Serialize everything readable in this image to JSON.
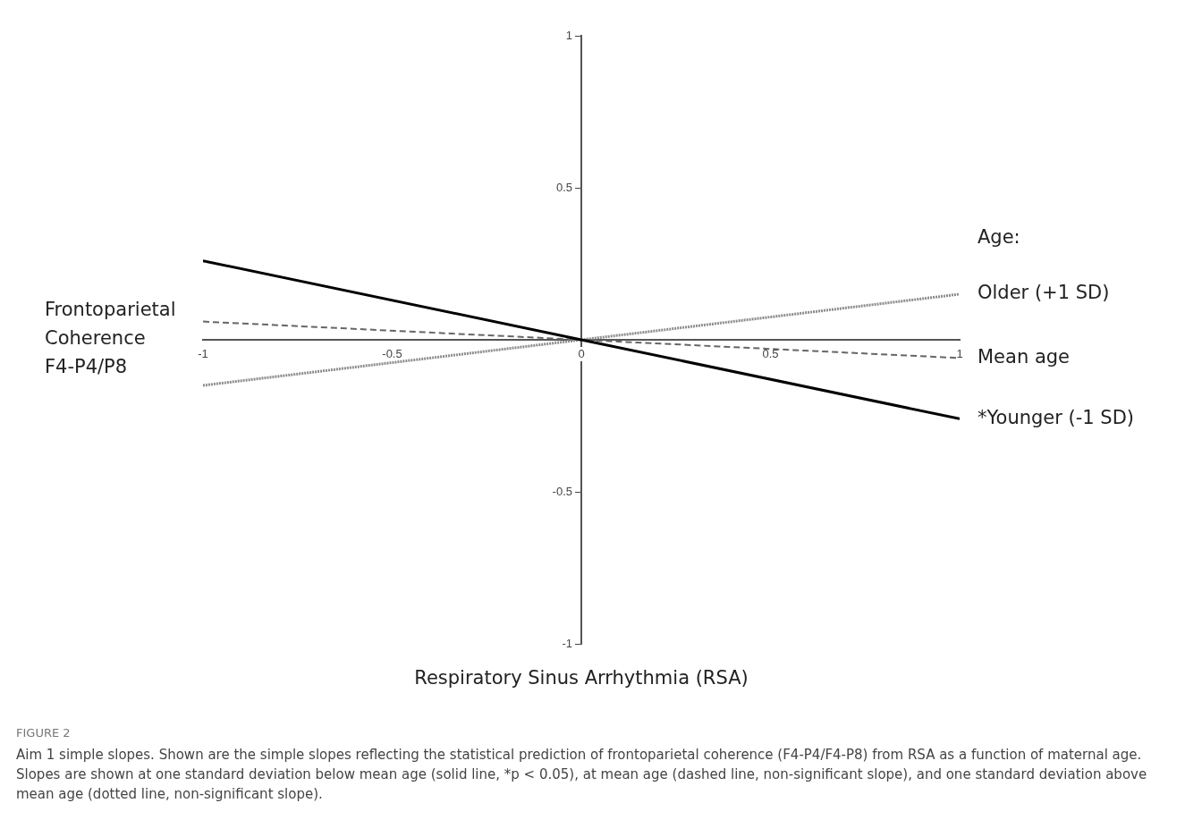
{
  "chart_data": {
    "type": "line",
    "xlabel": "Respiratory Sinus Arrhythmia (RSA)",
    "ylabel": "Frontoparietal Coherence F4-P4/P8",
    "legend_title": "Age:",
    "x": [
      -1,
      0,
      1
    ],
    "series": [
      {
        "name": "*Younger (-1 SD)",
        "color": "#000000",
        "line_style": "solid",
        "values": [
          0.26,
          0,
          -0.26
        ]
      },
      {
        "name": "Mean age",
        "color": "#666666",
        "line_style": "dashed",
        "values": [
          0.06,
          0,
          -0.06
        ]
      },
      {
        "name": "Older (+1 SD)",
        "color": "#8c8c8c",
        "line_style": "dotted",
        "values": [
          -0.15,
          0,
          0.15
        ]
      }
    ],
    "xlim": [
      -1,
      1
    ],
    "xticks": [
      -1,
      -0.5,
      0,
      0.5,
      1
    ],
    "ylim": [
      -1,
      1
    ],
    "yticks": [
      -1,
      -0.5,
      0.5,
      1
    ],
    "grid": false,
    "marker": "none",
    "annotations": [
      "FIGURE 2",
      "Aim 1 simple slopes. Shown are the simple slopes reflecting the statistical prediction of frontoparietal coherence (F4-P4/F4-P8) from RSA as a function of maternal age. Slopes are shown at one standard deviation below mean age (solid line, *p < 0.05), at mean age (dashed line, non-significant slope), and one standard deviation above mean age (dotted line, non-significant slope)."
    ]
  }
}
